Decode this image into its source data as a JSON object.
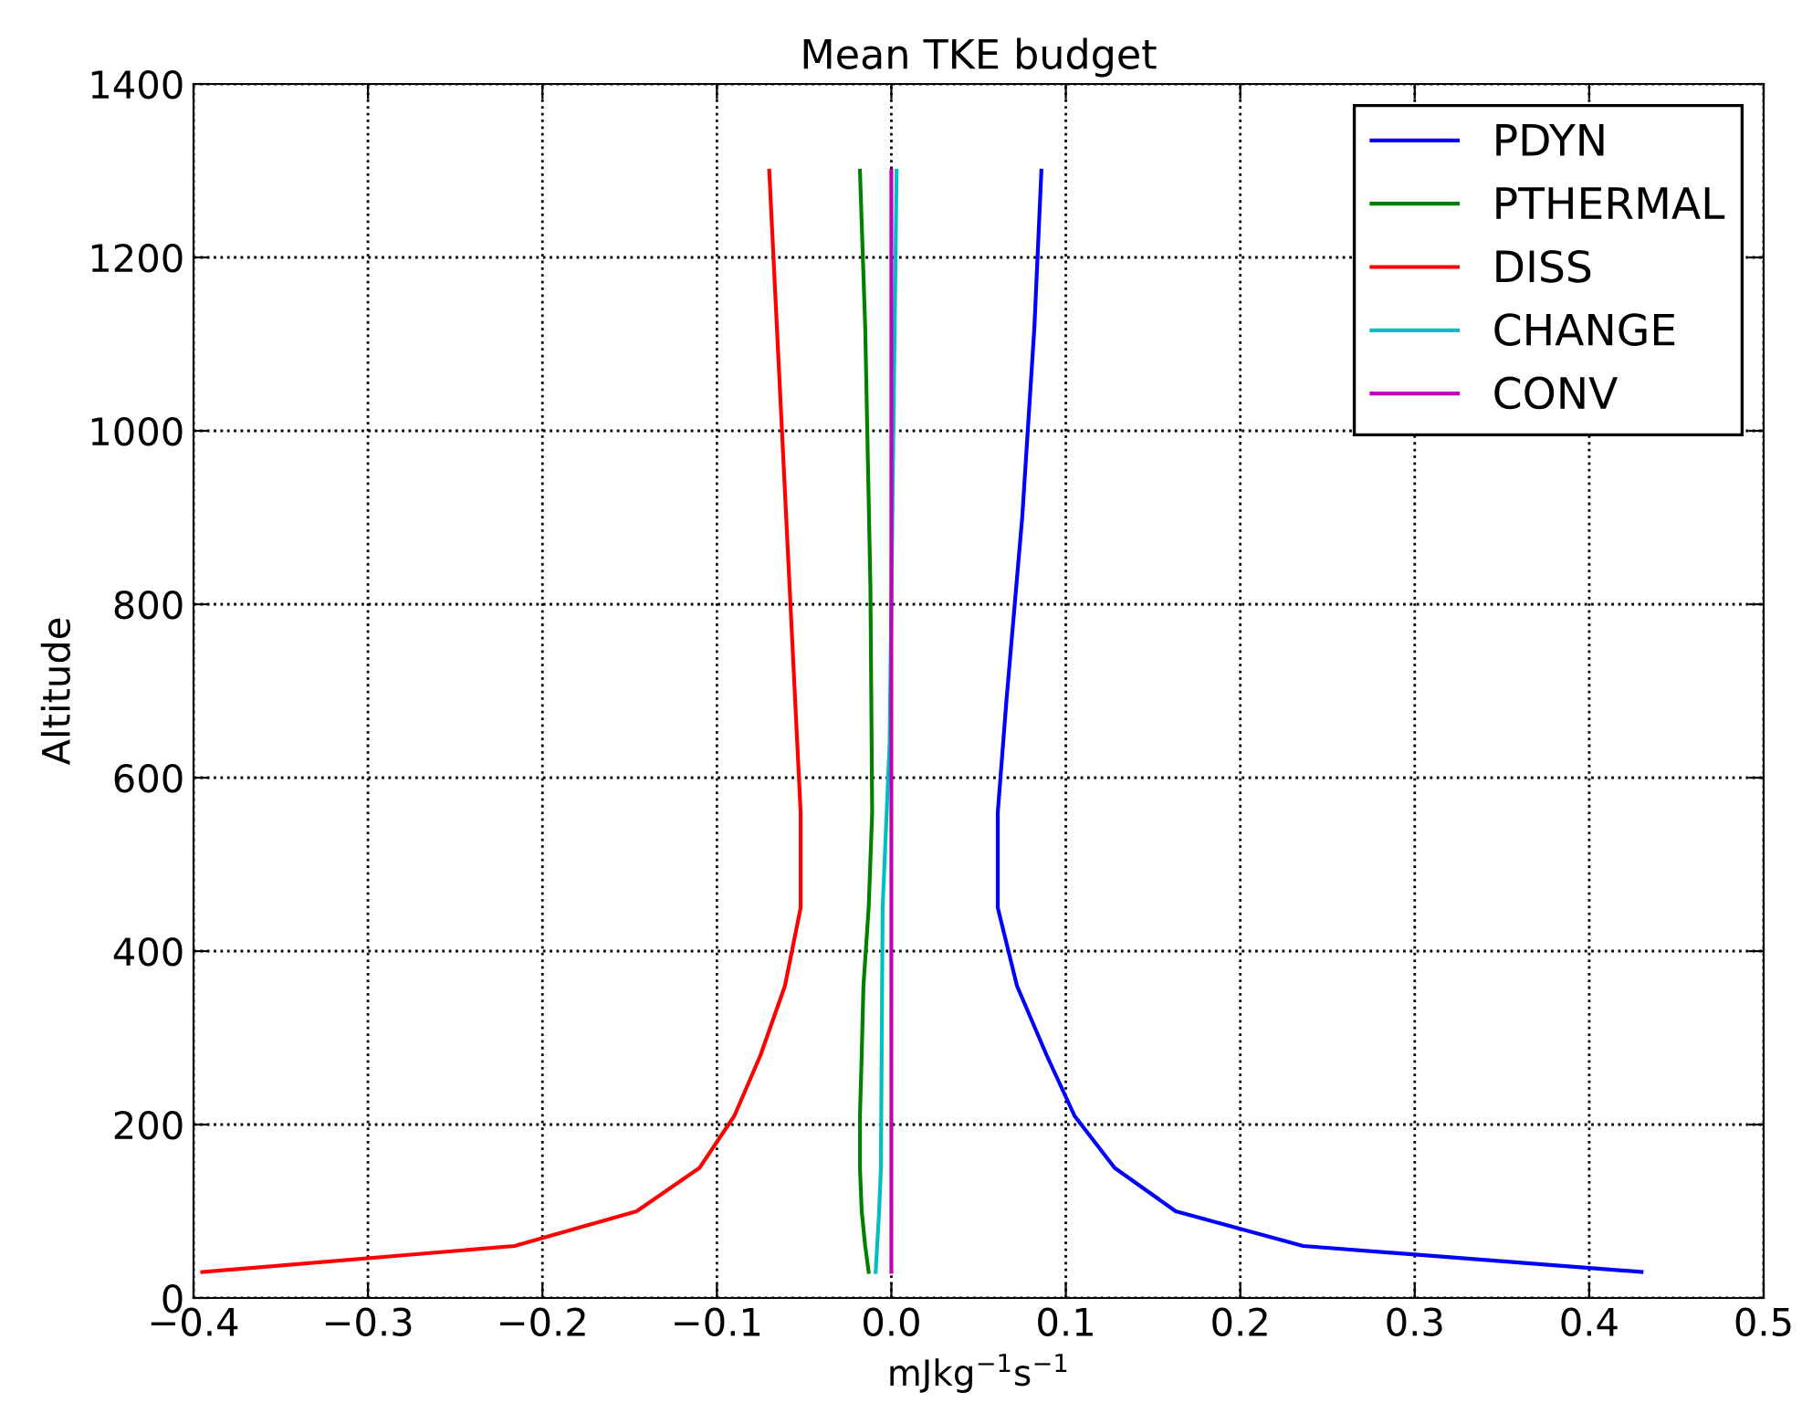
{
  "chart_data": {
    "type": "line",
    "title": "Mean TKE budget",
    "xlabel": "mJkg$^{−1}$s$^{−1}$",
    "ylabel": "Altitude",
    "series": [
      {
        "name": "PDYN",
        "color": "#0000ff",
        "x": [
          0.43,
          0.236,
          0.163,
          0.128,
          0.105,
          0.089,
          0.072,
          0.061,
          0.061,
          0.066,
          0.075,
          0.082,
          0.086
        ],
        "values": [
          30,
          60,
          100,
          150,
          210,
          280,
          360,
          450,
          560,
          690,
          900,
          1120,
          1300
        ]
      },
      {
        "name": "PTHERMAL",
        "color": "#008000",
        "x": [
          -0.013,
          -0.015,
          -0.017,
          -0.018,
          -0.018,
          -0.017,
          -0.016,
          -0.013,
          -0.011,
          -0.012,
          -0.015,
          -0.018
        ],
        "values": [
          30,
          60,
          100,
          150,
          210,
          280,
          360,
          450,
          560,
          820,
          1120,
          1300
        ]
      },
      {
        "name": "DISS",
        "color": "#ff0000",
        "x": [
          -0.395,
          -0.216,
          -0.146,
          -0.11,
          -0.09,
          -0.075,
          -0.061,
          -0.052,
          -0.052,
          -0.07
        ],
        "values": [
          30,
          60,
          100,
          150,
          210,
          280,
          360,
          450,
          560,
          1300
        ]
      },
      {
        "name": "CHANGE",
        "color": "#00bfbf",
        "x": [
          -0.009,
          -0.007,
          -0.006,
          -0.005,
          -0.001,
          0.003
        ],
        "values": [
          30,
          100,
          150,
          450,
          640,
          1300
        ]
      },
      {
        "name": "CONV",
        "color": "#bf00bf",
        "x": [
          0.0,
          0.0
        ],
        "values": [
          30,
          1300
        ]
      }
    ],
    "xlim": [
      -0.4,
      0.5
    ],
    "xticks": [
      {
        "value": -0.4,
        "label": "−0.4"
      },
      {
        "value": -0.3,
        "label": "−0.3"
      },
      {
        "value": -0.2,
        "label": "−0.2"
      },
      {
        "value": -0.1,
        "label": "−0.1"
      },
      {
        "value": 0.0,
        "label": "0.0"
      },
      {
        "value": 0.1,
        "label": "0.1"
      },
      {
        "value": 0.2,
        "label": "0.2"
      },
      {
        "value": 0.3,
        "label": "0.3"
      },
      {
        "value": 0.4,
        "label": "0.4"
      },
      {
        "value": 0.5,
        "label": "0.5"
      }
    ],
    "ylim": [
      0,
      1400
    ],
    "yticks": [
      0,
      200,
      400,
      600,
      800,
      1000,
      1200,
      1400
    ],
    "grid": true,
    "legend": "top right",
    "line_style": "solid",
    "marker": "none"
  }
}
